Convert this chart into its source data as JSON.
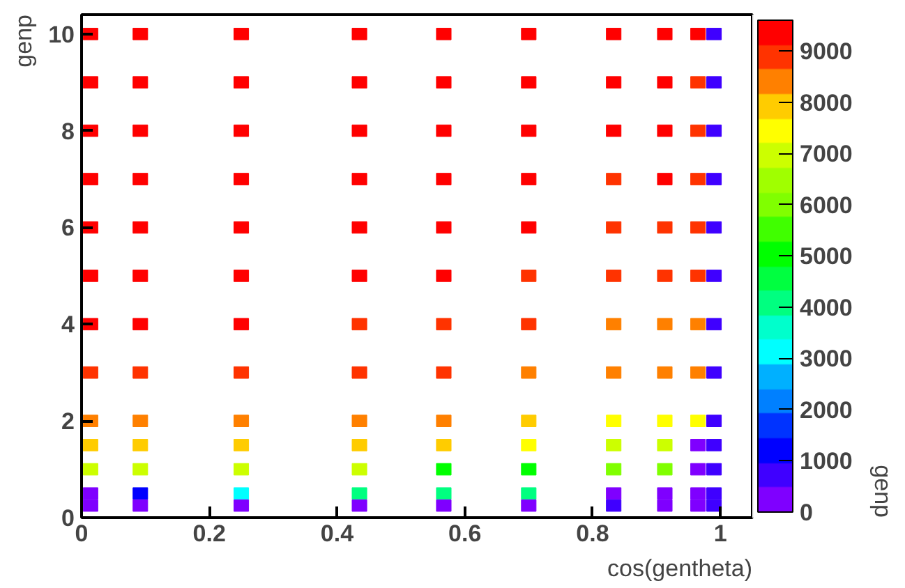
{
  "chart_data": {
    "type": "scatter",
    "xlabel": "cos(gentheta)",
    "ylabel": "genp",
    "clabel": "genp",
    "marker": "square",
    "xlim": [
      0,
      1.05
    ],
    "ylim": [
      0,
      10.4
    ],
    "xticks": [
      0,
      0.2,
      0.4,
      0.6,
      0.8,
      1
    ],
    "yticks": [
      0,
      2,
      4,
      6,
      8,
      10
    ],
    "clim": [
      0,
      9600
    ],
    "cticks": [
      0,
      1000,
      2000,
      3000,
      4000,
      5000,
      6000,
      7000,
      8000,
      9000
    ],
    "grid": false,
    "series": [
      {
        "x": [
          0.014,
          0.092,
          0.25,
          0.435,
          0.567,
          0.7,
          0.833,
          0.913,
          0.965,
          0.99
        ],
        "values": [
          10,
          10,
          10,
          10,
          10,
          10,
          10,
          10,
          10,
          10
        ],
        "cvalues": [
          9360,
          9360,
          9360,
          9360,
          9360,
          9360,
          9360,
          9360,
          9360,
          720
        ],
        "colors": [
          "#ff0000",
          "#ff0000",
          "#ff0000",
          "#ff0000",
          "#ff0000",
          "#ff0000",
          "#ff0000",
          "#ff0000",
          "#ff0000",
          "#3f00ff"
        ]
      },
      {
        "x": [
          0.014,
          0.092,
          0.25,
          0.435,
          0.567,
          0.7,
          0.833,
          0.913,
          0.965,
          0.99
        ],
        "values": [
          9,
          9,
          9,
          9,
          9,
          9,
          9,
          9,
          9,
          9
        ],
        "cvalues": [
          9360,
          9360,
          9360,
          9360,
          9360,
          9360,
          9360,
          9360,
          8880,
          720
        ],
        "colors": [
          "#ff0000",
          "#ff0000",
          "#ff0000",
          "#ff0000",
          "#ff0000",
          "#ff0000",
          "#ff0000",
          "#ff0000",
          "#ff3300",
          "#3f00ff"
        ]
      },
      {
        "x": [
          0.014,
          0.092,
          0.25,
          0.435,
          0.567,
          0.7,
          0.833,
          0.913,
          0.965,
          0.99
        ],
        "values": [
          8,
          8,
          8,
          8,
          8,
          8,
          8,
          8,
          8,
          8
        ],
        "cvalues": [
          9360,
          9360,
          9360,
          9360,
          9360,
          9360,
          9360,
          9360,
          8880,
          720
        ],
        "colors": [
          "#ff0000",
          "#ff0000",
          "#ff0000",
          "#ff0000",
          "#ff0000",
          "#ff0000",
          "#ff0000",
          "#ff0000",
          "#ff3300",
          "#3f00ff"
        ]
      },
      {
        "x": [
          0.014,
          0.092,
          0.25,
          0.435,
          0.567,
          0.7,
          0.833,
          0.913,
          0.965,
          0.99
        ],
        "values": [
          7,
          7,
          7,
          7,
          7,
          7,
          7,
          7,
          7,
          7
        ],
        "cvalues": [
          9360,
          9360,
          9360,
          9360,
          9360,
          9360,
          8880,
          9360,
          8880,
          720
        ],
        "colors": [
          "#ff0000",
          "#ff0000",
          "#ff0000",
          "#ff0000",
          "#ff0000",
          "#ff0000",
          "#ff3300",
          "#ff0000",
          "#ff3300",
          "#3f00ff"
        ]
      },
      {
        "x": [
          0.014,
          0.092,
          0.25,
          0.435,
          0.567,
          0.7,
          0.833,
          0.913,
          0.965,
          0.99
        ],
        "values": [
          6,
          6,
          6,
          6,
          6,
          6,
          6,
          6,
          6,
          6
        ],
        "cvalues": [
          9360,
          9360,
          9360,
          9360,
          9360,
          9360,
          8880,
          8880,
          8880,
          720
        ],
        "colors": [
          "#ff0000",
          "#ff0000",
          "#ff0000",
          "#ff0000",
          "#ff0000",
          "#ff0000",
          "#ff3300",
          "#ff3300",
          "#ff3300",
          "#3f00ff"
        ]
      },
      {
        "x": [
          0.014,
          0.092,
          0.25,
          0.435,
          0.567,
          0.7,
          0.833,
          0.913,
          0.965,
          0.99
        ],
        "values": [
          5,
          5,
          5,
          5,
          5,
          5,
          5,
          5,
          5,
          5
        ],
        "cvalues": [
          9360,
          9360,
          9360,
          9360,
          9360,
          8880,
          8880,
          8880,
          8880,
          720
        ],
        "colors": [
          "#ff0000",
          "#ff0000",
          "#ff0000",
          "#ff0000",
          "#ff0000",
          "#ff3300",
          "#ff3300",
          "#ff3300",
          "#ff3300",
          "#3f00ff"
        ]
      },
      {
        "x": [
          0.014,
          0.092,
          0.25,
          0.435,
          0.567,
          0.7,
          0.833,
          0.913,
          0.965,
          0.99
        ],
        "values": [
          4,
          4,
          4,
          4,
          4,
          4,
          4,
          4,
          4,
          4
        ],
        "cvalues": [
          9360,
          9360,
          9360,
          8880,
          8880,
          8880,
          8400,
          8400,
          8400,
          720
        ],
        "colors": [
          "#ff0000",
          "#ff0000",
          "#ff0000",
          "#ff3300",
          "#ff3300",
          "#ff3300",
          "#ff8000",
          "#ff8000",
          "#ff8000",
          "#3f00ff"
        ]
      },
      {
        "x": [
          0.014,
          0.092,
          0.25,
          0.435,
          0.567,
          0.7,
          0.833,
          0.913,
          0.965,
          0.99
        ],
        "values": [
          3,
          3,
          3,
          3,
          3,
          3,
          3,
          3,
          3,
          3
        ],
        "cvalues": [
          8880,
          8880,
          8880,
          8880,
          8880,
          8400,
          8400,
          8400,
          8400,
          720
        ],
        "colors": [
          "#ff3300",
          "#ff3300",
          "#ff3300",
          "#ff3300",
          "#ff3300",
          "#ff8000",
          "#ff8000",
          "#ff8000",
          "#ff8000",
          "#3f00ff"
        ]
      },
      {
        "x": [
          0.014,
          0.092,
          0.25,
          0.435,
          0.567,
          0.7,
          0.833,
          0.913,
          0.965,
          0.99
        ],
        "values": [
          2,
          2,
          2,
          2,
          2,
          2,
          2,
          2,
          2,
          2
        ],
        "cvalues": [
          8400,
          8400,
          8400,
          8400,
          8400,
          7920,
          7440,
          7440,
          7440,
          720
        ],
        "colors": [
          "#ff8000",
          "#ff8000",
          "#ff8000",
          "#ff8000",
          "#ff8000",
          "#ffcc00",
          "#ffff00",
          "#ffff00",
          "#ffff00",
          "#3f00ff"
        ]
      },
      {
        "x": [
          0.014,
          0.092,
          0.25,
          0.435,
          0.567,
          0.7,
          0.833,
          0.913,
          0.965,
          0.99
        ],
        "values": [
          1.5,
          1.5,
          1.5,
          1.5,
          1.5,
          1.5,
          1.5,
          1.5,
          1.5,
          1.5
        ],
        "cvalues": [
          7920,
          7920,
          7920,
          7920,
          7920,
          7440,
          6960,
          6960,
          240,
          720
        ],
        "colors": [
          "#ffcc00",
          "#ffcc00",
          "#ffcc00",
          "#ffcc00",
          "#ffcc00",
          "#ffff00",
          "#ccff00",
          "#ccff00",
          "#7f00ff",
          "#3f00ff"
        ]
      },
      {
        "x": [
          0.014,
          0.092,
          0.25,
          0.435,
          0.567,
          0.7,
          0.833,
          0.913,
          0.965,
          0.99
        ],
        "values": [
          1,
          1,
          1,
          1,
          1,
          1,
          1,
          1,
          1,
          1
        ],
        "cvalues": [
          6960,
          6960,
          6960,
          6960,
          5040,
          5040,
          6000,
          6000,
          240,
          720
        ],
        "colors": [
          "#ccff00",
          "#ccff00",
          "#ccff00",
          "#ccff00",
          "#00ff00",
          "#00ff00",
          "#80ff00",
          "#80ff00",
          "#7f00ff",
          "#3f00ff"
        ]
      },
      {
        "x": [
          0.014,
          0.092,
          0.25,
          0.435,
          0.567,
          0.7,
          0.833,
          0.913,
          0.965,
          0.99
        ],
        "values": [
          0.5,
          0.5,
          0.5,
          0.5,
          0.5,
          0.5,
          0.5,
          0.5,
          0.5,
          0.5
        ],
        "cvalues": [
          240,
          1200,
          3120,
          4080,
          4080,
          4080,
          240,
          240,
          240,
          720
        ],
        "colors": [
          "#7f00ff",
          "#0000ff",
          "#00ffff",
          "#00ff80",
          "#00ff80",
          "#00ff80",
          "#7f00ff",
          "#7f00ff",
          "#7f00ff",
          "#3f00ff"
        ]
      },
      {
        "x": [
          0.014,
          0.092,
          0.25,
          0.435,
          0.567,
          0.7,
          0.833,
          0.913,
          0.965,
          0.99
        ],
        "values": [
          0.25,
          0.25,
          0.25,
          0.25,
          0.25,
          0.25,
          0.25,
          0.25,
          0.25,
          0.25
        ],
        "cvalues": [
          240,
          240,
          240,
          240,
          240,
          240,
          720,
          240,
          240,
          720
        ],
        "colors": [
          "#7f00ff",
          "#7f00ff",
          "#7f00ff",
          "#7f00ff",
          "#7f00ff",
          "#7f00ff",
          "#3f00ff",
          "#7f00ff",
          "#7f00ff",
          "#3f00ff"
        ]
      }
    ]
  }
}
